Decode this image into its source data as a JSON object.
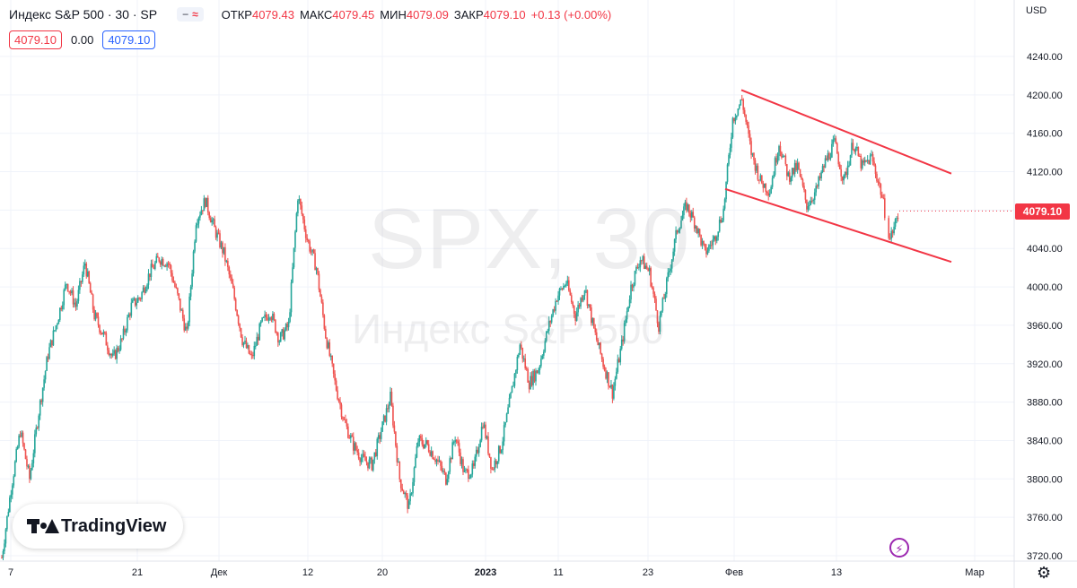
{
  "header": {
    "title": "Индекс S&P 500 · 30 · SP",
    "open_label": "ОТКР",
    "open_value": "4079.43",
    "high_label": "МАКС",
    "high_value": "4079.45",
    "low_label": "МИН",
    "low_value": "4079.09",
    "close_label": "ЗАКР",
    "close_value": "4079.10",
    "change_value": "+0.13 (+0.00%)",
    "bid": "4079.10",
    "spread": "0.00",
    "ask": "4079.10"
  },
  "watermark": {
    "symbol": "SPX, 30",
    "name": "Индекс S&P 500"
  },
  "logo_text": "TradingView",
  "currency": "USD",
  "last_price": "4079.10",
  "colors": {
    "up": "#26a69a",
    "down": "#ef5350",
    "trend": "#f23645",
    "accent_blue": "#2962ff",
    "grid": "#f0f3fa"
  },
  "chart_data": {
    "type": "candlestick",
    "interval": "30",
    "y_ticks": [
      3720,
      3760,
      3800,
      3840,
      3880,
      3920,
      3960,
      4000,
      4040,
      4080,
      4120,
      4160,
      4200,
      4240
    ],
    "y_tick_labels": [
      "3720.00",
      "3760.00",
      "3800.00",
      "3840.00",
      "3880.00",
      "3920.00",
      "3960.00",
      "4000.00",
      "4040.00",
      "4080.00",
      "4120.00",
      "4160.00",
      "4200.00",
      "4240.00"
    ],
    "ylim": [
      3710,
      4260
    ],
    "x_tick_labels": [
      "7",
      "21",
      "Дек",
      "12",
      "20",
      "2023",
      "11",
      "23",
      "Фев",
      "13",
      "Мар"
    ],
    "x_tick_emphasis": [
      "2023"
    ],
    "grid": true,
    "price_path": [
      [
        "7",
        3718
      ],
      [
        "",
        3790
      ],
      [
        "",
        3850
      ],
      [
        "",
        3800
      ],
      [
        "",
        3870
      ],
      [
        "",
        3930
      ],
      [
        "",
        3965
      ],
      [
        "",
        4005
      ],
      [
        "",
        3980
      ],
      [
        "",
        4025
      ],
      [
        "",
        3970
      ],
      [
        "",
        3950
      ],
      [
        "",
        3925
      ],
      [
        "",
        3945
      ],
      [
        "",
        3980
      ],
      [
        "21",
        3990
      ],
      [
        "",
        4015
      ],
      [
        "",
        4030
      ],
      [
        "",
        4025
      ],
      [
        "",
        3990
      ],
      [
        "",
        3950
      ],
      [
        "Дек",
        4070
      ],
      [
        "",
        4090
      ],
      [
        "",
        4060
      ],
      [
        "",
        4035
      ],
      [
        "",
        3995
      ],
      [
        "",
        3945
      ],
      [
        "",
        3925
      ],
      [
        "",
        3960
      ],
      [
        "",
        3975
      ],
      [
        "",
        3945
      ],
      [
        "",
        3960
      ],
      [
        "12",
        4095
      ],
      [
        "",
        4050
      ],
      [
        "",
        4020
      ],
      [
        "",
        3950
      ],
      [
        "",
        3900
      ],
      [
        "",
        3860
      ],
      [
        "",
        3835
      ],
      [
        "",
        3820
      ],
      [
        "20",
        3815
      ],
      [
        "",
        3850
      ],
      [
        "",
        3885
      ],
      [
        "",
        3800
      ],
      [
        "",
        3770
      ],
      [
        "",
        3840
      ],
      [
        "",
        3835
      ],
      [
        "",
        3820
      ],
      [
        "",
        3800
      ],
      [
        "",
        3845
      ],
      [
        "2023",
        3805
      ],
      [
        "",
        3810
      ],
      [
        "",
        3860
      ],
      [
        "",
        3810
      ],
      [
        "",
        3835
      ],
      [
        "",
        3885
      ],
      [
        "",
        3940
      ],
      [
        "",
        3900
      ],
      [
        "11",
        3915
      ],
      [
        "",
        3955
      ],
      [
        "",
        3990
      ],
      [
        "",
        4005
      ],
      [
        "",
        3970
      ],
      [
        "",
        4000
      ],
      [
        "",
        3955
      ],
      [
        "",
        3920
      ],
      [
        "23",
        3890
      ],
      [
        "",
        3940
      ],
      [
        "",
        4000
      ],
      [
        "",
        4030
      ],
      [
        "",
        4015
      ],
      [
        "",
        3960
      ],
      [
        "",
        4010
      ],
      [
        "",
        4060
      ],
      [
        "",
        4085
      ],
      [
        "",
        4065
      ],
      [
        "",
        4035
      ],
      [
        "",
        4050
      ],
      [
        "Фев",
        4080
      ],
      [
        "",
        4175
      ],
      [
        "",
        4195
      ],
      [
        "",
        4140
      ],
      [
        "",
        4110
      ],
      [
        "",
        4100
      ],
      [
        "",
        4150
      ],
      [
        "",
        4115
      ],
      [
        "",
        4125
      ],
      [
        "",
        4085
      ],
      [
        "",
        4100
      ],
      [
        "13",
        4130
      ],
      [
        "",
        4150
      ],
      [
        "",
        4110
      ],
      [
        "",
        4150
      ],
      [
        "",
        4125
      ],
      [
        "",
        4135
      ],
      [
        "",
        4100
      ],
      [
        "",
        4050
      ],
      [
        "",
        4079
      ]
    ],
    "trendlines": [
      {
        "from": [
          "2023-02-02",
          4205
        ],
        "to": [
          "2023-03-03",
          4118
        ]
      },
      {
        "from": [
          "2023-01-31",
          4102
        ],
        "to": [
          "2023-03-03",
          4026
        ]
      }
    ]
  }
}
